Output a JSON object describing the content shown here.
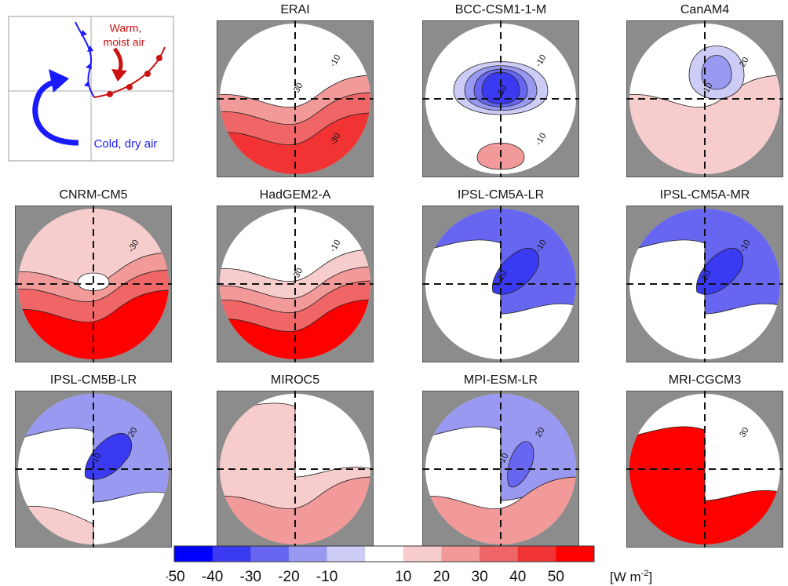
{
  "schematic": {
    "warm_label_line1": "Warm,",
    "warm_label_line2": "moist air",
    "cold_label": "Cold, dry air"
  },
  "panels": [
    {
      "title": "ERAI",
      "color": "#ffffff",
      "labels": [
        "-10",
        "-30",
        "-30"
      ]
    },
    {
      "title": "BCC-CSM1-1-M",
      "labels": [
        "-10",
        "30",
        "-10"
      ]
    },
    {
      "title": "CanAM4",
      "labels": [
        "20",
        "-10"
      ]
    },
    {
      "title": "CNRM-CM5",
      "labels": [
        "-30"
      ]
    },
    {
      "title": "HadGEM2-A",
      "labels": [
        "-10",
        "-30"
      ]
    },
    {
      "title": "IPSL-CM5A-LR",
      "labels": [
        "-10",
        "20"
      ]
    },
    {
      "title": "IPSL-CM5A-MR",
      "labels": [
        "-10",
        "20"
      ]
    },
    {
      "title": "IPSL-CM5B-LR",
      "labels": [
        "20",
        "-10"
      ]
    },
    {
      "title": "MIROC5",
      "labels": []
    },
    {
      "title": "MPI-ESM-LR",
      "labels": [
        "20",
        "-10"
      ]
    },
    {
      "title": "MRI-CGCM3",
      "labels": [
        "30"
      ]
    }
  ],
  "colorbar": {
    "ticks": [
      "-50",
      "-40",
      "-30",
      "-20",
      "-10",
      "10",
      "20",
      "30",
      "40",
      "50"
    ],
    "unit": "[W m",
    "unit_sup": "-2",
    "unit_close": "]",
    "colors": [
      "#0000ff",
      "#3a3af2",
      "#6666f0",
      "#9999f2",
      "#ccccf7",
      "#ffffff",
      "#f7cccc",
      "#f29999",
      "#f06666",
      "#f23333",
      "#ff0000"
    ]
  },
  "chart_data": {
    "type": "heatmap",
    "titles": [
      "ERAI",
      "BCC-CSM1-1-M",
      "CanAM4",
      "CNRM-CM5",
      "HadGEM2-A",
      "IPSL-CM5A-LR",
      "IPSL-CM5A-MR",
      "IPSL-CM5B-LR",
      "MIROC5",
      "MPI-ESM-LR",
      "MRI-CGCM3"
    ],
    "colorbar_ticks": [
      -50,
      -40,
      -30,
      -20,
      -10,
      10,
      20,
      30,
      40,
      50
    ],
    "colorbar_unit": "W m-2",
    "contour_labels": {
      "ERAI": [
        -10,
        -30,
        -30
      ],
      "BCC-CSM1-1-M": [
        -10,
        30,
        -10
      ],
      "CanAM4": [
        20,
        -10
      ],
      "CNRM-CM5": [
        -30
      ],
      "HadGEM2-A": [
        -10,
        -30
      ],
      "IPSL-CM5A-LR": [
        -10,
        20
      ],
      "IPSL-CM5A-MR": [
        -10,
        20
      ],
      "IPSL-CM5B-LR": [
        20,
        -10
      ],
      "MIROC5": [],
      "MPI-ESM-LR": [
        20,
        -10
      ],
      "MRI-CGCM3": [
        30
      ]
    }
  }
}
